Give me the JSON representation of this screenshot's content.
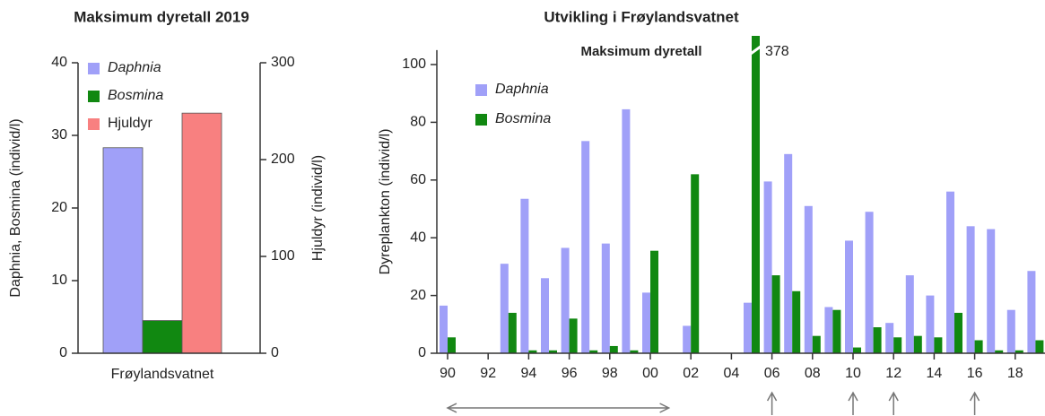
{
  "chart_data": [
    {
      "type": "bar",
      "title": "Maksimum dyretall 2019",
      "y_label": "Daphnia, Bosmina (individ/l)",
      "y2_label": "Hjuldyr (individ/l)",
      "categories": [
        "Frøylandsvatnet"
      ],
      "series": [
        {
          "name": "Daphnia",
          "color": "#a0a0f8",
          "values": [
            28.3
          ]
        },
        {
          "name": "Bosmina",
          "color": "#118811",
          "values": [
            4.5
          ]
        },
        {
          "name": "Hjuldyr",
          "color": "#f88080",
          "values": [
            248
          ],
          "axis": "y2"
        }
      ],
      "ylim": [
        0,
        40
      ],
      "yticks": [
        0,
        10,
        20,
        30,
        40
      ],
      "y2lim": [
        0,
        300
      ],
      "y2ticks": [
        0,
        100,
        200,
        300
      ],
      "legend": "upper left"
    },
    {
      "type": "bar",
      "title": "Utvikling i Frøylandsvatnet",
      "subtitle": "Maksimum dyretall",
      "y_label": "Dyreplankton (individ/l)",
      "categories": [
        "90",
        null,
        "92",
        null,
        "94",
        null,
        "96",
        null,
        "98",
        null,
        "00",
        null,
        "02",
        null,
        "04",
        null,
        "06",
        null,
        "08",
        null,
        "10",
        null,
        "12",
        null,
        "14",
        null,
        "16",
        null,
        "18",
        null
      ],
      "series": [
        {
          "name": "Daphnia",
          "color": "#a0a0f8",
          "values": [
            16.5,
            null,
            null,
            31,
            53.5,
            26,
            36.5,
            73.5,
            38,
            84.5,
            21,
            null,
            9.5,
            null,
            null,
            17.5,
            59.5,
            69,
            51,
            16,
            39,
            49,
            10.5,
            27,
            20,
            56,
            44,
            43,
            15,
            28.5
          ]
        },
        {
          "name": "Bosmina",
          "color": "#118811",
          "values": [
            5.5,
            null,
            null,
            14,
            1,
            1,
            12,
            1,
            2.5,
            1,
            35.5,
            null,
            62,
            null,
            null,
            378,
            27,
            21.5,
            6,
            15,
            2,
            9,
            5.5,
            6,
            5.5,
            14,
            4.5,
            1,
            1,
            4.5
          ],
          "value_labels": [
            null,
            null,
            null,
            null,
            null,
            null,
            null,
            null,
            null,
            null,
            null,
            null,
            null,
            null,
            null,
            "378",
            null,
            null,
            null,
            null,
            null,
            null,
            null,
            null,
            null,
            null,
            null,
            null,
            null,
            null
          ]
        }
      ],
      "ylim": [
        0,
        105
      ],
      "yticks": [
        0,
        20,
        40,
        60,
        80,
        100
      ],
      "legend": "upper left"
    }
  ]
}
